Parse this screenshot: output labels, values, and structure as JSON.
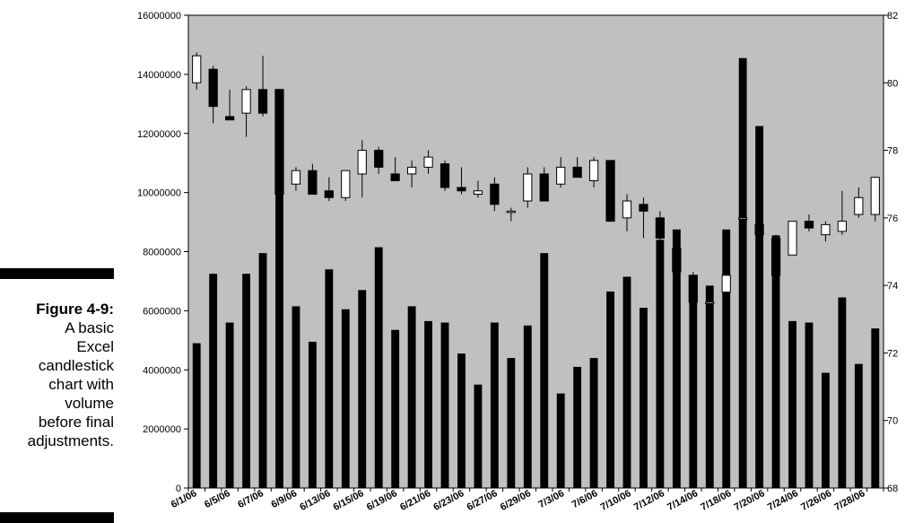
{
  "caption": {
    "figure_label": "Figure 4-9:",
    "lines": [
      "A basic",
      "Excel",
      "candlestick",
      "chart with",
      "volume",
      "before final",
      "adjustments."
    ]
  },
  "chart_data": {
    "type": "candlestick-volume",
    "plot_background": "#c0c0c0",
    "up_color": "#ffffff",
    "down_color": "#000000",
    "volume_color": "#000000",
    "left_axis": {
      "min": 0,
      "max": 16000000,
      "ticks": [
        "0",
        "2000000",
        "4000000",
        "6000000",
        "8000000",
        "10000000",
        "12000000",
        "14000000",
        "16000000"
      ]
    },
    "right_axis": {
      "min": 68,
      "max": 82,
      "ticks": [
        "68",
        "70",
        "72",
        "74",
        "76",
        "78",
        "80",
        "82"
      ]
    },
    "x_labels": [
      "6/1/06",
      "6/5/06",
      "6/7/06",
      "6/9/06",
      "6/13/06",
      "6/15/06",
      "6/19/06",
      "6/21/06",
      "6/23/06",
      "6/27/06",
      "6/29/06",
      "7/3/06",
      "7/6/06",
      "7/10/06",
      "7/12/06",
      "7/14/06",
      "7/18/06",
      "7/20/06",
      "7/24/06",
      "7/26/06",
      "7/28/06"
    ],
    "volume": [
      4900000,
      7250000,
      5600000,
      7250000,
      7950000,
      13500000,
      6150000,
      4950000,
      7400000,
      6050000,
      6700000,
      8150000,
      5350000,
      6150000,
      5650000,
      5600000,
      4550000,
      3500000,
      5600000,
      4400000,
      5500000,
      7950000,
      3200000,
      4100000,
      4400000,
      6650000,
      7150000,
      6100000,
      8400000,
      8750000,
      7100000,
      6850000,
      8750000,
      14550000,
      12250000,
      8550000,
      5650000,
      5600000,
      3900000,
      6450000,
      4200000,
      5400000
    ],
    "candles": [
      {
        "o": 80.0,
        "h": 80.9,
        "l": 79.8,
        "c": 80.8
      },
      {
        "o": 80.4,
        "h": 80.5,
        "l": 78.8,
        "c": 79.3
      },
      {
        "o": 79.0,
        "h": 79.8,
        "l": 78.9,
        "c": 78.9
      },
      {
        "o": 79.1,
        "h": 79.9,
        "l": 78.4,
        "c": 79.8
      },
      {
        "o": 79.8,
        "h": 80.8,
        "l": 79.0,
        "c": 79.1
      },
      {
        "o": 79.8,
        "h": 79.8,
        "l": 76.7,
        "c": 76.7
      },
      {
        "o": 77.0,
        "h": 77.5,
        "l": 76.8,
        "c": 77.4
      },
      {
        "o": 77.4,
        "h": 77.6,
        "l": 76.7,
        "c": 76.7
      },
      {
        "o": 76.8,
        "h": 77.2,
        "l": 76.5,
        "c": 76.6
      },
      {
        "o": 76.6,
        "h": 77.3,
        "l": 76.5,
        "c": 77.4
      },
      {
        "o": 77.3,
        "h": 78.3,
        "l": 76.6,
        "c": 78.0
      },
      {
        "o": 78.0,
        "h": 78.1,
        "l": 77.3,
        "c": 77.5
      },
      {
        "o": 77.3,
        "h": 77.8,
        "l": 77.1,
        "c": 77.1
      },
      {
        "o": 77.3,
        "h": 77.7,
        "l": 76.9,
        "c": 77.5
      },
      {
        "o": 77.5,
        "h": 78.0,
        "l": 77.3,
        "c": 77.8
      },
      {
        "o": 77.6,
        "h": 77.7,
        "l": 76.8,
        "c": 76.9
      },
      {
        "o": 76.9,
        "h": 77.5,
        "l": 76.7,
        "c": 76.8
      },
      {
        "o": 76.7,
        "h": 77.1,
        "l": 76.6,
        "c": 76.8
      },
      {
        "o": 77.0,
        "h": 77.2,
        "l": 76.2,
        "c": 76.4
      },
      {
        "o": 76.2,
        "h": 76.3,
        "l": 75.9,
        "c": 76.2
      },
      {
        "o": 76.5,
        "h": 77.5,
        "l": 76.3,
        "c": 77.3
      },
      {
        "o": 77.3,
        "h": 77.5,
        "l": 76.5,
        "c": 76.5
      },
      {
        "o": 77.0,
        "h": 77.8,
        "l": 76.9,
        "c": 77.5
      },
      {
        "o": 77.5,
        "h": 77.8,
        "l": 77.2,
        "c": 77.2
      },
      {
        "o": 77.1,
        "h": 77.8,
        "l": 76.9,
        "c": 77.7
      },
      {
        "o": 77.7,
        "h": 77.7,
        "l": 75.9,
        "c": 75.9
      },
      {
        "o": 76.0,
        "h": 76.7,
        "l": 75.6,
        "c": 76.5
      },
      {
        "o": 76.4,
        "h": 76.6,
        "l": 75.4,
        "c": 76.2
      },
      {
        "o": 76.0,
        "h": 76.2,
        "l": 74.1,
        "c": 75.4
      },
      {
        "o": 75.1,
        "h": 75.1,
        "l": 74.2,
        "c": 74.4
      },
      {
        "o": 74.3,
        "h": 74.4,
        "l": 73.0,
        "c": 73.5
      },
      {
        "o": 73.5,
        "h": 73.6,
        "l": 73.2,
        "c": 73.5
      },
      {
        "o": 73.8,
        "h": 74.2,
        "l": 73.7,
        "c": 74.3
      },
      {
        "o": 76.0,
        "h": 76.1,
        "l": 75.9,
        "c": 76.0
      },
      {
        "o": 75.8,
        "h": 75.9,
        "l": 75.4,
        "c": 75.5
      },
      {
        "o": 75.4,
        "h": 75.5,
        "l": 74.2,
        "c": 74.3
      },
      {
        "o": 74.9,
        "h": 75.9,
        "l": 74.9,
        "c": 75.9
      },
      {
        "o": 75.9,
        "h": 76.1,
        "l": 75.6,
        "c": 75.7
      },
      {
        "o": 75.5,
        "h": 75.9,
        "l": 75.3,
        "c": 75.8
      },
      {
        "o": 75.6,
        "h": 76.8,
        "l": 75.5,
        "c": 75.9
      },
      {
        "o": 76.1,
        "h": 76.9,
        "l": 76.0,
        "c": 76.6
      },
      {
        "o": 76.1,
        "h": 77.2,
        "l": 75.9,
        "c": 77.2
      }
    ]
  }
}
